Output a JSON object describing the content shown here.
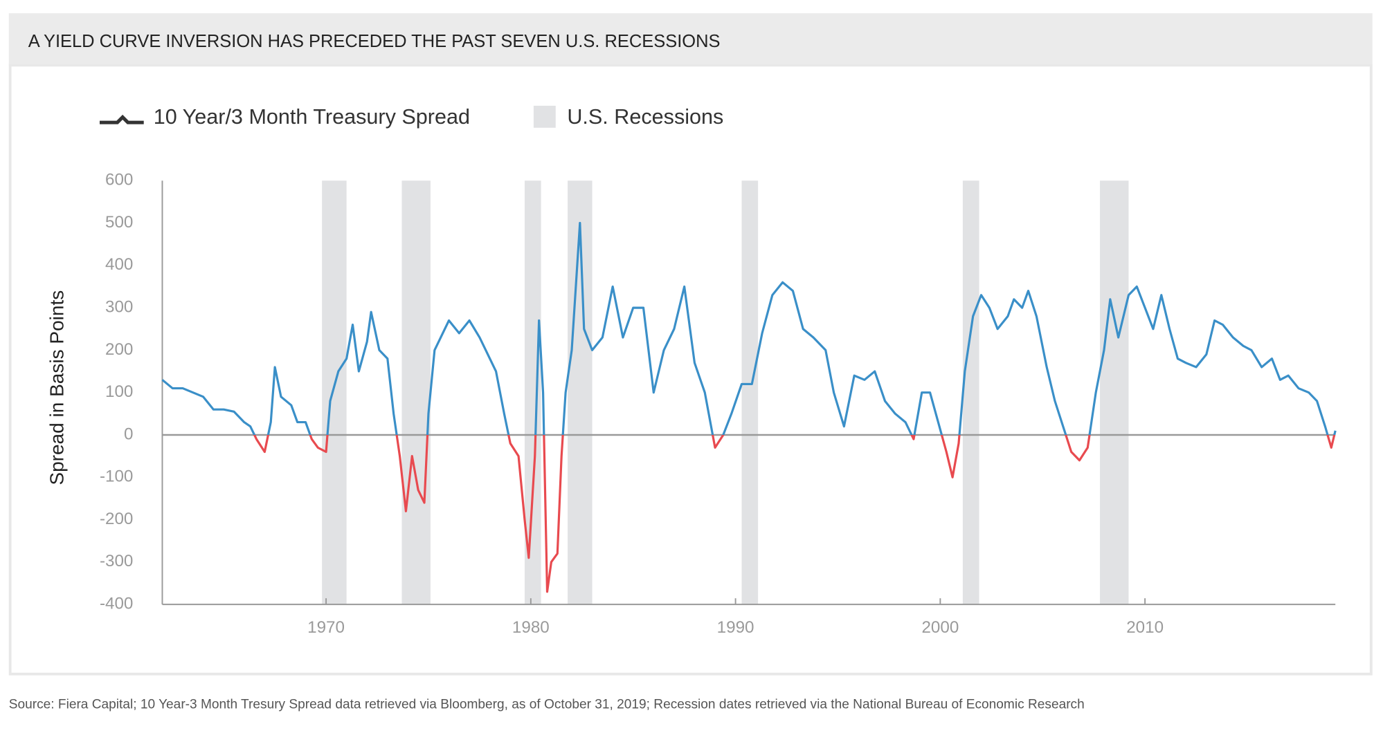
{
  "chart_data": {
    "type": "line",
    "title": "A YIELD CURVE INVERSION HAS PRECEDED THE PAST SEVEN U.S. RECESSIONS",
    "y_label": "Spread in Basis Points",
    "source": "Source: Fiera Capital; 10 Year-3 Month Tresury Spread data retrieved via Bloomberg, as of October 31, 2019; Recession dates retrieved via the National Bureau of Economic Research",
    "xlim": [
      1962,
      2019.3
    ],
    "xticks": [
      1970,
      1980,
      1990,
      2000,
      2010
    ],
    "ylim": [
      -400,
      600
    ],
    "yticks": [
      -400,
      -300,
      -200,
      -100,
      0,
      100,
      200,
      300,
      400,
      500,
      600
    ],
    "grid": false,
    "recessions": {
      "name": "U.S. Recessions",
      "color": "#e1e2e4",
      "ranges": [
        [
          1969.8,
          1971.0
        ],
        [
          1973.7,
          1975.1
        ],
        [
          1979.7,
          1980.5
        ],
        [
          1981.8,
          1983.0
        ],
        [
          1990.3,
          1991.1
        ],
        [
          2001.1,
          2001.9
        ],
        [
          2007.8,
          2009.2
        ]
      ]
    },
    "series": [
      {
        "name": "10 Year/3 Month Treasury Spread",
        "color": "#3a8fc8",
        "negative_color": "#e84a4f",
        "x": [
          1962.0,
          1962.5,
          1963,
          1963.5,
          1964,
          1964.5,
          1965,
          1965.5,
          1966,
          1966.3,
          1966.6,
          1967,
          1967.3,
          1967.5,
          1967.8,
          1968.3,
          1968.6,
          1969,
          1969.3,
          1969.6,
          1970,
          1970.2,
          1970.6,
          1971,
          1971.3,
          1971.6,
          1972,
          1972.2,
          1972.6,
          1973,
          1973.3,
          1973.6,
          1973.9,
          1974.2,
          1974.5,
          1974.8,
          1975.0,
          1975.3,
          1975.6,
          1976,
          1976.5,
          1977,
          1977.5,
          1978,
          1978.3,
          1978.7,
          1979,
          1979.4,
          1979.7,
          1979.9,
          1980.2,
          1980.4,
          1980.6,
          1980.8,
          1981.0,
          1981.3,
          1981.5,
          1981.7,
          1982.0,
          1982.4,
          1982.6,
          1983,
          1983.5,
          1984,
          1984.5,
          1985,
          1985.5,
          1986,
          1986.5,
          1987,
          1987.5,
          1988,
          1988.5,
          1989,
          1989.4,
          1989.8,
          1990.3,
          1990.8,
          1991.3,
          1991.8,
          1992.3,
          1992.8,
          1993.3,
          1993.8,
          1994.4,
          1994.8,
          1995.3,
          1995.8,
          1996.3,
          1996.8,
          1997.3,
          1997.8,
          1998.3,
          1998.7,
          1999.1,
          1999.5,
          1999.9,
          2000.3,
          2000.6,
          2000.9,
          2001.2,
          2001.6,
          2002.0,
          2002.4,
          2002.8,
          2003.3,
          2003.6,
          2004.0,
          2004.3,
          2004.7,
          2005.2,
          2005.6,
          2006.0,
          2006.4,
          2006.8,
          2007.2,
          2007.6,
          2008.0,
          2008.3,
          2008.7,
          2009.2,
          2009.6,
          2010.0,
          2010.4,
          2010.8,
          2011.2,
          2011.6,
          2012.0,
          2012.5,
          2013.0,
          2013.4,
          2013.8,
          2014.3,
          2014.8,
          2015.2,
          2015.7,
          2016.2,
          2016.6,
          2017.0,
          2017.5,
          2018.0,
          2018.4,
          2018.8,
          2019.1,
          2019.3
        ],
        "values": [
          130,
          110,
          110,
          100,
          90,
          60,
          60,
          55,
          30,
          20,
          -10,
          -40,
          30,
          160,
          90,
          70,
          30,
          30,
          -10,
          -30,
          -40,
          80,
          150,
          180,
          260,
          150,
          220,
          290,
          200,
          180,
          50,
          -50,
          -180,
          -50,
          -130,
          -160,
          50,
          200,
          230,
          270,
          240,
          270,
          230,
          180,
          150,
          50,
          -20,
          -50,
          -200,
          -290,
          -50,
          270,
          100,
          -370,
          -300,
          -280,
          -50,
          100,
          200,
          500,
          250,
          200,
          230,
          350,
          230,
          300,
          300,
          100,
          200,
          250,
          350,
          170,
          100,
          -30,
          0,
          50,
          120,
          120,
          240,
          330,
          360,
          340,
          250,
          230,
          200,
          100,
          20,
          140,
          130,
          150,
          80,
          50,
          30,
          -10,
          100,
          100,
          30,
          -40,
          -100,
          -20,
          150,
          280,
          330,
          300,
          250,
          280,
          320,
          300,
          340,
          280,
          160,
          80,
          20,
          -40,
          -60,
          -30,
          100,
          200,
          320,
          230,
          330,
          350,
          300,
          250,
          330,
          250,
          180,
          170,
          160,
          190,
          270,
          260,
          230,
          210,
          200,
          160,
          180,
          130,
          140,
          110,
          100,
          80,
          20,
          -30,
          10
        ]
      }
    ]
  }
}
